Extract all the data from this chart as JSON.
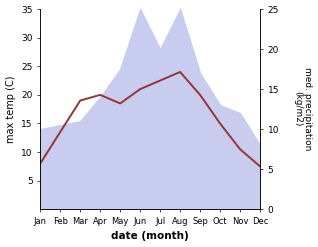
{
  "months": [
    "Jan",
    "Feb",
    "Mar",
    "Apr",
    "May",
    "Jun",
    "Jul",
    "Aug",
    "Sep",
    "Oct",
    "Nov",
    "Dec"
  ],
  "temperature": [
    8.0,
    13.5,
    19.0,
    20.0,
    18.5,
    21.0,
    22.5,
    24.0,
    20.0,
    15.0,
    10.5,
    7.5
  ],
  "precipitation": [
    10.0,
    10.5,
    11.0,
    14.0,
    17.5,
    25.0,
    20.0,
    25.0,
    17.0,
    13.0,
    12.0,
    8.0
  ],
  "temp_color": "#993333",
  "precip_fill_color": "#c8ccee",
  "ylabel_left": "max temp (C)",
  "ylabel_right": "med. precipitation\n(kg/m2)",
  "xlabel": "date (month)",
  "ylim_left": [
    0,
    35
  ],
  "ylim_right": [
    0,
    25
  ],
  "yticks_left": [
    5,
    10,
    15,
    20,
    25,
    30,
    35
  ],
  "yticks_right": [
    0,
    5,
    10,
    15,
    20,
    25
  ],
  "figsize": [
    3.18,
    2.47
  ],
  "dpi": 100
}
